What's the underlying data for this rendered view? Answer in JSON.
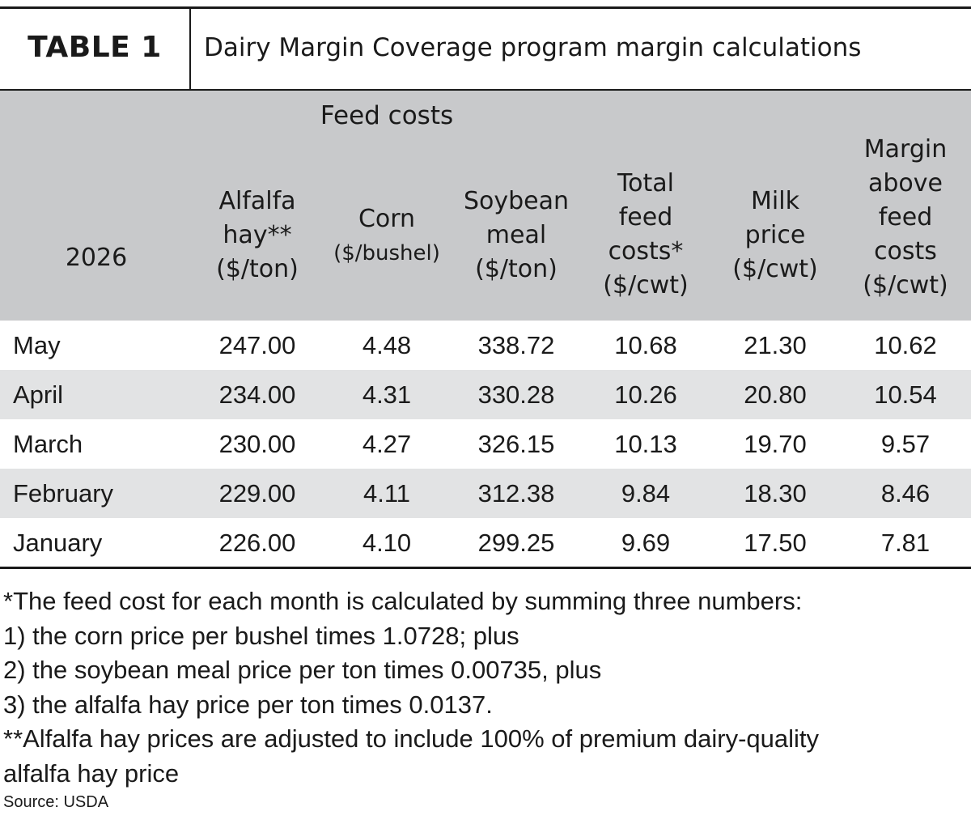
{
  "title": {
    "label": "TABLE 1",
    "text": "Dairy Margin Coverage program margin calculations"
  },
  "header": {
    "group": "Feed costs",
    "year": "2026",
    "alfalfa": [
      "Alfalfa",
      "hay**",
      "($/ton)"
    ],
    "corn": [
      "Corn",
      "($/bushel)"
    ],
    "soybean": [
      "Soybean",
      "meal",
      "($/ton)"
    ],
    "total": [
      "Total",
      "feed",
      "costs*",
      "($/cwt)"
    ],
    "milk": [
      "Milk",
      "price",
      "($/cwt)"
    ],
    "margin": [
      "Margin",
      "above",
      "feed",
      "costs",
      "($/cwt)"
    ]
  },
  "rows": [
    [
      "May",
      "247.00",
      "4.48",
      "338.72",
      "10.68",
      "21.30",
      "10.62"
    ],
    [
      "April",
      "234.00",
      "4.31",
      "330.28",
      "10.26",
      "20.80",
      "10.54"
    ],
    [
      "March",
      "230.00",
      "4.27",
      "326.15",
      "10.13",
      "19.70",
      "9.57"
    ],
    [
      "February",
      "229.00",
      "4.11",
      "312.38",
      "9.84",
      "18.30",
      "8.46"
    ],
    [
      "January",
      "226.00",
      "4.10",
      "299.25",
      "9.69",
      "17.50",
      "7.81"
    ]
  ],
  "footnotes": [
    "*The feed cost for each month is calculated by summing three numbers:",
    "1) the corn price per bushel times 1.0728; plus",
    "2) the soybean meal price per ton times 0.00735, plus",
    "3) the alfalfa hay price per ton times 0.0137.",
    "**Alfalfa hay prices are adjusted to include 100% of premium dairy-quality",
    "alfalfa hay price"
  ],
  "source": "Source: USDA"
}
